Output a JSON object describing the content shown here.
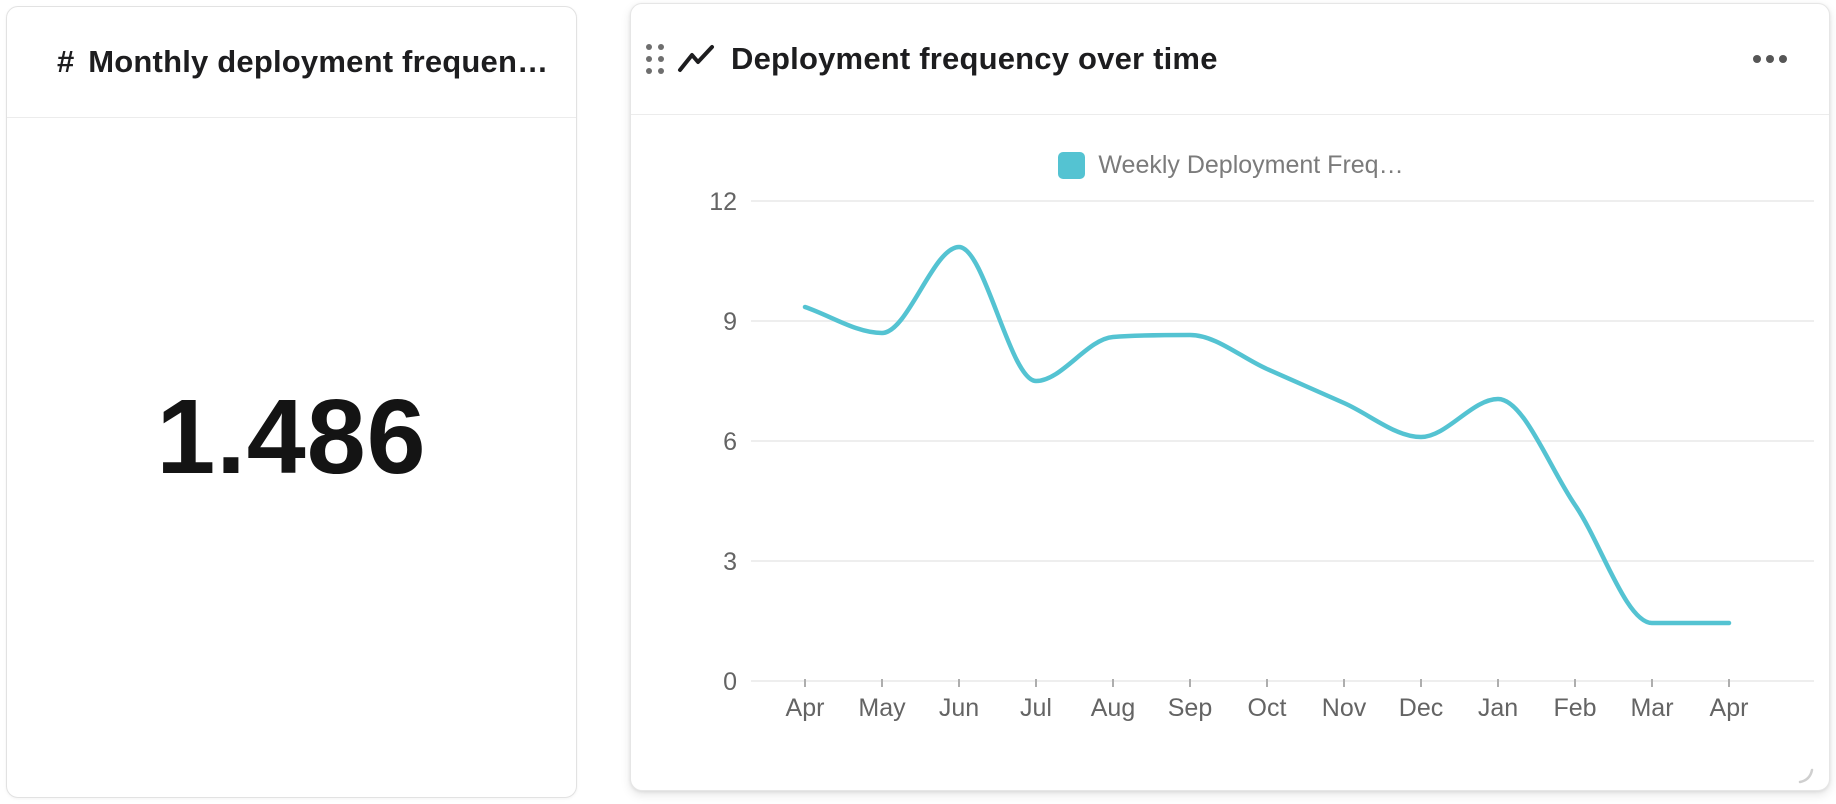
{
  "stat_card": {
    "icon": "#",
    "title": "Monthly deployment frequen…",
    "value": "1.486"
  },
  "chart_card": {
    "title": "Deployment frequency over time",
    "legend_label": "Weekly Deployment Freq…"
  },
  "chart_data": {
    "type": "line",
    "title": "Deployment frequency over time",
    "x": [
      "Apr",
      "May",
      "Jun",
      "Jul",
      "Aug",
      "Sep",
      "Oct",
      "Nov",
      "Dec",
      "Jan",
      "Feb",
      "Mar",
      "Apr"
    ],
    "series": [
      {
        "name": "Weekly Deployment Freq…",
        "color": "#54c3d2",
        "values": [
          9.35,
          8.7,
          10.85,
          7.5,
          8.6,
          8.65,
          7.8,
          6.95,
          6.1,
          7.05,
          4.4,
          1.45,
          1.45
        ]
      }
    ],
    "ylim": [
      0,
      12
    ],
    "yticks": [
      12,
      9,
      6,
      3,
      0
    ],
    "grid": true,
    "legend_position": "top",
    "curve": "monotone",
    "xlabel": "",
    "ylabel": ""
  },
  "colors": {
    "line": "#54c3d2",
    "gridline": "#e8e8e8",
    "axis_text": "#646464",
    "title_text": "#1d1d1f",
    "legend_text": "#7b7b7b",
    "card_border": "#e2e2e2",
    "tick_mark": "#aeaeae",
    "resize_handle": "#cfcfcf"
  }
}
